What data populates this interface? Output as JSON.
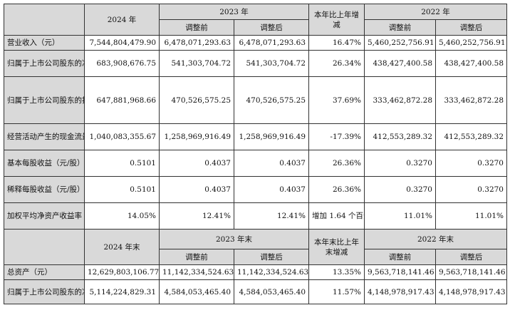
{
  "header1": {
    "y2024": "2024 年",
    "y2023": "2023 年",
    "change": "本年比上年增减",
    "y2022": "2022 年",
    "before": "调整前",
    "after": "调整后"
  },
  "header2": {
    "y2024": "2024 年末",
    "y2023": "2023 年末",
    "change": "本年末比上年末增减",
    "y2022": "2022 年末",
    "before": "调整前",
    "after": "调整后"
  },
  "rows_top": [
    {
      "label": "营业收入（元）",
      "v2024": "7,544,804,479.90",
      "v2023_before": "6,478,071,293.63",
      "v2023_after": "6,478,071,293.63",
      "change": "16.47%",
      "v2022_before": "5,460,252,756.91",
      "v2022_after": "5,460,252,756.91"
    },
    {
      "label": "归属于上市公司股东的净利润（元）",
      "v2024": "683,908,676.75",
      "v2023_before": "541,303,704.72",
      "v2023_after": "541,303,704.72",
      "change": "26.34%",
      "v2022_before": "438,427,400.58",
      "v2022_after": "438,427,400.58"
    },
    {
      "label": "归属于上市公司股东的扣除非经常性损益的净利润（元）",
      "v2024": "647,881,968.66",
      "v2023_before": "470,526,575.25",
      "v2023_after": "470,526,575.25",
      "change": "37.69%",
      "v2022_before": "333,462,872.28",
      "v2022_after": "333,462,872.28"
    },
    {
      "label": "经营活动产生的现金流量净额（元）",
      "v2024": "1,040,083,355.67",
      "v2023_before": "1,258,969,916.49",
      "v2023_after": "1,258,969,916.49",
      "change": "-17.39%",
      "v2022_before": "412,553,289.32",
      "v2022_after": "412,553,289.32"
    },
    {
      "label": "基本每股收益（元/股）",
      "v2024": "0.5101",
      "v2023_before": "0.4037",
      "v2023_after": "0.4037",
      "change": "26.36%",
      "v2022_before": "0.3270",
      "v2022_after": "0.3270"
    },
    {
      "label": "稀释每股收益（元/股）",
      "v2024": "0.5101",
      "v2023_before": "0.4037",
      "v2023_after": "0.4037",
      "change": "26.36%",
      "v2022_before": "0.3270",
      "v2022_after": "0.3270"
    },
    {
      "label": "加权平均净资产收益率",
      "v2024": "14.05%",
      "v2023_before": "12.41%",
      "v2023_after": "12.41%",
      "change": "增加 1.64 个百分点",
      "v2022_before": "11.01%",
      "v2022_after": "11.01%"
    }
  ],
  "rows_bottom": [
    {
      "label": "总资产（元）",
      "v2024": "12,629,803,106.77",
      "v2023_before": "11,142,334,524.63",
      "v2023_after": "11,142,334,524.63",
      "change": "13.35%",
      "v2022_before": "9,563,718,141.46",
      "v2022_after": "9,563,718,141.46"
    },
    {
      "label": "归属于上市公司股东的净资产（元）",
      "v2024": "5,114,224,829.31",
      "v2023_before": "4,584,053,465.40",
      "v2023_after": "4,584,053,465.40",
      "change": "11.57%",
      "v2022_before": "4,148,978,917.43",
      "v2022_after": "4,148,978,917.43"
    }
  ]
}
